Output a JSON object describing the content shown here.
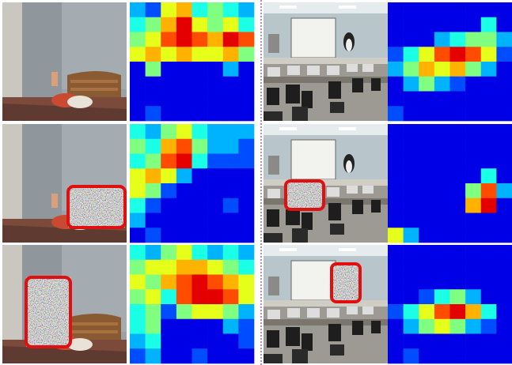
{
  "rows": [
    {
      "left_heatmap": [
        [
          0.3,
          0.2,
          0.6,
          0.7,
          0.4,
          0.5,
          0.4,
          0.3
        ],
        [
          0.4,
          0.5,
          0.7,
          0.9,
          0.6,
          0.5,
          0.6,
          0.4
        ],
        [
          0.5,
          0.6,
          0.8,
          0.9,
          0.8,
          0.7,
          0.9,
          0.8
        ],
        [
          0.6,
          0.7,
          0.6,
          0.7,
          0.6,
          0.6,
          0.7,
          0.5
        ],
        [
          0.1,
          0.5,
          0.1,
          0.1,
          0.1,
          0.1,
          0.3,
          0.1
        ],
        [
          0.1,
          0.1,
          0.1,
          0.1,
          0.1,
          0.1,
          0.1,
          0.1
        ],
        [
          0.1,
          0.1,
          0.1,
          0.1,
          0.1,
          0.1,
          0.1,
          0.1
        ],
        [
          0.1,
          0.2,
          0.1,
          0.1,
          0.1,
          0.1,
          0.1,
          0.1
        ]
      ],
      "right_heatmap": [
        [
          0.1,
          0.1,
          0.1,
          0.1,
          0.1,
          0.1,
          0.1,
          0.1
        ],
        [
          0.1,
          0.1,
          0.1,
          0.1,
          0.1,
          0.1,
          0.4,
          0.1
        ],
        [
          0.1,
          0.1,
          0.1,
          0.3,
          0.4,
          0.5,
          0.5,
          0.3
        ],
        [
          0.2,
          0.4,
          0.6,
          0.8,
          0.9,
          0.8,
          0.6,
          0.2
        ],
        [
          0.3,
          0.5,
          0.7,
          0.6,
          0.7,
          0.5,
          0.3,
          0.1
        ],
        [
          0.1,
          0.3,
          0.5,
          0.3,
          0.2,
          0.1,
          0.1,
          0.1
        ],
        [
          0.1,
          0.1,
          0.1,
          0.1,
          0.1,
          0.1,
          0.1,
          0.1
        ],
        [
          0.2,
          0.1,
          0.1,
          0.1,
          0.1,
          0.1,
          0.1,
          0.1
        ]
      ]
    },
    {
      "left_heatmap": [
        [
          0.4,
          0.3,
          0.5,
          0.6,
          0.4,
          0.3,
          0.3,
          0.3
        ],
        [
          0.5,
          0.4,
          0.7,
          0.8,
          0.5,
          0.3,
          0.3,
          0.2
        ],
        [
          0.4,
          0.5,
          0.8,
          0.9,
          0.4,
          0.2,
          0.2,
          0.2
        ],
        [
          0.6,
          0.7,
          0.6,
          0.3,
          0.1,
          0.1,
          0.1,
          0.1
        ],
        [
          0.6,
          0.5,
          0.2,
          0.1,
          0.1,
          0.1,
          0.1,
          0.1
        ],
        [
          0.4,
          0.2,
          0.1,
          0.1,
          0.1,
          0.1,
          0.2,
          0.1
        ],
        [
          0.3,
          0.1,
          0.1,
          0.1,
          0.1,
          0.1,
          0.1,
          0.1
        ],
        [
          0.1,
          0.2,
          0.1,
          0.1,
          0.1,
          0.1,
          0.1,
          0.1
        ]
      ],
      "right_heatmap": [
        [
          0.1,
          0.1,
          0.1,
          0.1,
          0.1,
          0.1,
          0.1,
          0.1
        ],
        [
          0.1,
          0.1,
          0.1,
          0.1,
          0.1,
          0.1,
          0.1,
          0.1
        ],
        [
          0.1,
          0.1,
          0.1,
          0.1,
          0.1,
          0.1,
          0.1,
          0.1
        ],
        [
          0.1,
          0.1,
          0.1,
          0.1,
          0.1,
          0.1,
          0.4,
          0.1
        ],
        [
          0.1,
          0.1,
          0.1,
          0.1,
          0.1,
          0.5,
          0.8,
          0.3
        ],
        [
          0.1,
          0.1,
          0.1,
          0.1,
          0.1,
          0.7,
          0.9,
          0.1
        ],
        [
          0.1,
          0.1,
          0.1,
          0.1,
          0.1,
          0.1,
          0.1,
          0.1
        ],
        [
          0.6,
          0.3,
          0.1,
          0.1,
          0.1,
          0.1,
          0.1,
          0.1
        ]
      ]
    },
    {
      "left_heatmap": [
        [
          0.4,
          0.3,
          0.5,
          0.6,
          0.4,
          0.3,
          0.4,
          0.3
        ],
        [
          0.5,
          0.6,
          0.6,
          0.7,
          0.7,
          0.6,
          0.5,
          0.4
        ],
        [
          0.6,
          0.5,
          0.7,
          0.8,
          0.9,
          0.8,
          0.7,
          0.6
        ],
        [
          0.5,
          0.6,
          0.4,
          0.8,
          0.9,
          0.9,
          0.8,
          0.6
        ],
        [
          0.4,
          0.5,
          0.2,
          0.5,
          0.6,
          0.6,
          0.5,
          0.3
        ],
        [
          0.4,
          0.5,
          0.1,
          0.1,
          0.1,
          0.1,
          0.3,
          0.2
        ],
        [
          0.3,
          0.4,
          0.1,
          0.1,
          0.1,
          0.1,
          0.1,
          0.2
        ],
        [
          0.2,
          0.3,
          0.1,
          0.1,
          0.2,
          0.1,
          0.1,
          0.1
        ]
      ],
      "right_heatmap": [
        [
          0.1,
          0.1,
          0.1,
          0.1,
          0.1,
          0.1,
          0.1,
          0.1
        ],
        [
          0.1,
          0.1,
          0.1,
          0.1,
          0.1,
          0.1,
          0.1,
          0.1
        ],
        [
          0.1,
          0.1,
          0.1,
          0.1,
          0.1,
          0.1,
          0.1,
          0.1
        ],
        [
          0.1,
          0.1,
          0.2,
          0.4,
          0.5,
          0.3,
          0.1,
          0.1
        ],
        [
          0.2,
          0.4,
          0.6,
          0.8,
          0.9,
          0.7,
          0.4,
          0.1
        ],
        [
          0.1,
          0.3,
          0.5,
          0.6,
          0.5,
          0.3,
          0.2,
          0.1
        ],
        [
          0.1,
          0.1,
          0.1,
          0.1,
          0.1,
          0.1,
          0.1,
          0.1
        ],
        [
          0.1,
          0.2,
          0.1,
          0.1,
          0.1,
          0.1,
          0.1,
          0.1
        ]
      ]
    }
  ]
}
